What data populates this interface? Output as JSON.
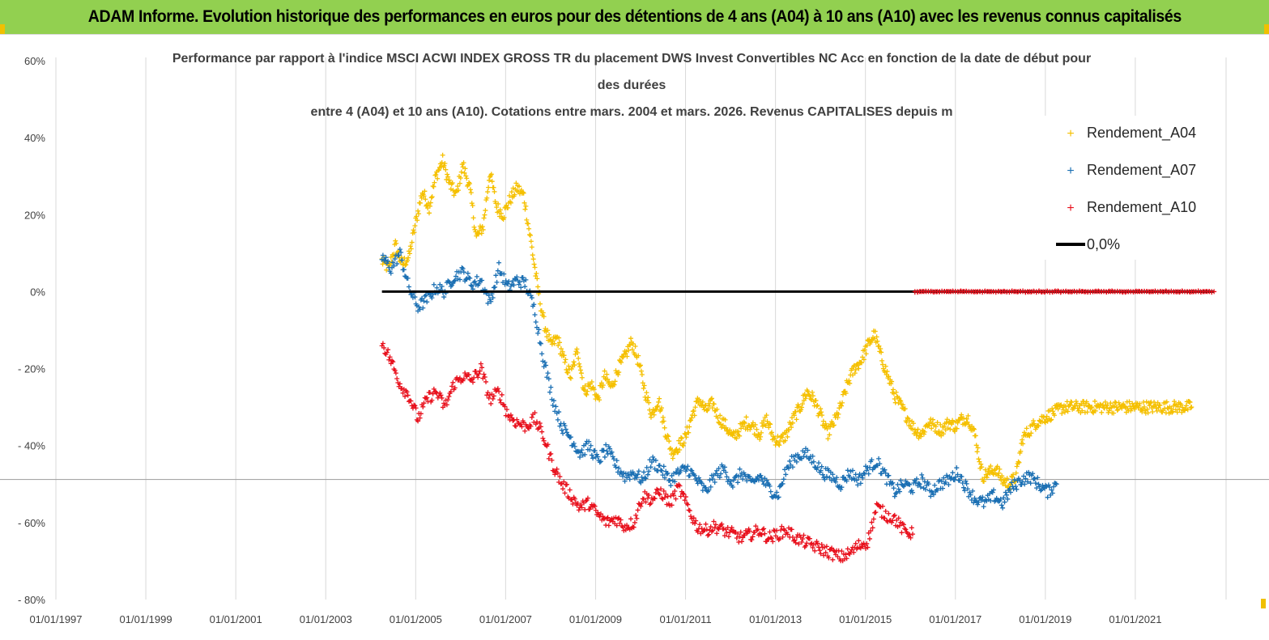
{
  "header": {
    "title": "ADAM Informe. Evolution historique des performances en euros pour des détentions de 4 ans (A04) à 10 ans (A10) avec les revenus connus capitalisés"
  },
  "colors": {
    "banner": "#92d050",
    "a04": "#f5c000",
    "a07": "#1a6fb3",
    "a10": "#e8101c",
    "zero": "#000000"
  },
  "chart_data": {
    "type": "scatter",
    "title_lines": [
      "Performance par rapport à l'indice MSCI ACWI INDEX GROSS TR  du placement DWS Invest Convertibles NC Acc en fonction de la date de début pour",
      "des durées",
      "entre 4 (A04) et 10 ans (A10). Cotations entre mars. 2004 et mars. 2026. Revenus CAPITALISES depuis m"
    ],
    "y_ticks": [
      "60%",
      "40%",
      "20%",
      "0%",
      "- 20%",
      "- 40%",
      "- 60%",
      "- 80%"
    ],
    "y_tick_values": [
      60,
      40,
      20,
      0,
      -20,
      -40,
      -60,
      -80
    ],
    "ylim": [
      -80,
      60
    ],
    "xlim": [
      1997.0,
      2023.0
    ],
    "x_ticks": [
      "01/01/1997",
      "01/01/1999",
      "01/01/2001",
      "01/01/2003",
      "01/01/2005",
      "01/01/2007",
      "01/01/2009",
      "01/01/2011",
      "01/01/2013",
      "01/01/2015",
      "01/01/2017",
      "01/01/2019",
      "01/01/2021"
    ],
    "x_tick_values": [
      1997,
      1999,
      2001,
      2003,
      2005,
      2007,
      2009,
      2011,
      2013,
      2015,
      2017,
      2019,
      2021
    ],
    "legend": {
      "position": "top-right",
      "entries": [
        "Rendement_A04",
        "Rendement_A07",
        "Rendement_A10",
        "0,0%"
      ]
    },
    "series": [
      {
        "name": "Rendement_A04",
        "x": [
          2004.25,
          2004.4,
          2004.55,
          2004.7,
          2004.85,
          2005.0,
          2005.15,
          2005.3,
          2005.45,
          2005.6,
          2005.75,
          2005.9,
          2006.05,
          2006.2,
          2006.35,
          2006.5,
          2006.65,
          2006.8,
          2006.95,
          2007.1,
          2007.25,
          2007.4,
          2007.55,
          2007.7,
          2007.85,
          2008.0,
          2008.15,
          2008.3,
          2008.45,
          2008.6,
          2008.75,
          2008.9,
          2009.05,
          2009.2,
          2009.35,
          2009.5,
          2009.65,
          2009.8,
          2009.95,
          2010.1,
          2010.25,
          2010.4,
          2010.55,
          2010.7,
          2010.85,
          2011.0,
          2011.15,
          2011.3,
          2011.45,
          2011.6,
          2011.75,
          2011.9,
          2012.05,
          2012.2,
          2012.35,
          2012.5,
          2012.65,
          2012.8,
          2012.95,
          2013.1,
          2013.25,
          2013.4,
          2013.55,
          2013.7,
          2013.85,
          2014.0,
          2014.15,
          2014.3,
          2014.45,
          2014.6,
          2014.75,
          2014.9,
          2015.05,
          2015.2,
          2015.35,
          2015.5,
          2015.65,
          2015.8,
          2015.95,
          2016.1,
          2016.25,
          2016.4,
          2016.55,
          2016.7,
          2016.85,
          2017.0,
          2017.15,
          2017.3,
          2017.45,
          2017.6,
          2017.75,
          2017.9,
          2018.05,
          2018.2,
          2018.35,
          2018.5,
          2018.65,
          2018.8,
          2018.95,
          2019.1,
          2019.25,
          2019.4,
          2019.55,
          2019.7,
          2019.85,
          2020.0,
          2020.15,
          2020.3,
          2020.45,
          2020.6,
          2020.75,
          2020.9,
          2021.05,
          2021.2,
          2021.35,
          2021.5,
          2021.65,
          2021.8,
          2021.95,
          2022.1,
          2022.25
        ],
        "y": [
          8,
          6,
          12,
          7,
          9,
          18,
          26,
          22,
          30,
          34,
          28,
          25,
          33,
          27,
          14,
          17,
          31,
          22,
          20,
          24,
          27,
          25,
          14,
          2,
          -8,
          -14,
          -12,
          -18,
          -22,
          -15,
          -26,
          -24,
          -28,
          -22,
          -25,
          -20,
          -17,
          -13,
          -18,
          -26,
          -32,
          -28,
          -36,
          -42,
          -40,
          -38,
          -32,
          -28,
          -31,
          -29,
          -33,
          -35,
          -38,
          -36,
          -34,
          -35,
          -37,
          -33,
          -38,
          -39,
          -37,
          -33,
          -30,
          -26,
          -28,
          -32,
          -37,
          -34,
          -30,
          -24,
          -20,
          -18,
          -14,
          -11,
          -17,
          -22,
          -27,
          -30,
          -33,
          -36,
          -37,
          -34,
          -35,
          -36,
          -34,
          -35,
          -33,
          -33,
          -38,
          -48,
          -47,
          -46,
          -49,
          -50,
          -48,
          -38,
          -36,
          -34,
          -33,
          -32,
          -31,
          -30,
          -30,
          -30,
          -30,
          -30,
          -30,
          -30,
          -30,
          -30,
          -30,
          -30,
          -30,
          -30,
          -30,
          -30,
          -30,
          -30,
          -30,
          -30,
          -30
        ]
      },
      {
        "name": "Rendement_A07",
        "x": [
          2004.25,
          2004.45,
          2004.65,
          2004.85,
          2005.05,
          2005.25,
          2005.45,
          2005.65,
          2005.85,
          2006.05,
          2006.25,
          2006.45,
          2006.65,
          2006.85,
          2007.05,
          2007.25,
          2007.45,
          2007.65,
          2007.85,
          2008.05,
          2008.25,
          2008.45,
          2008.65,
          2008.85,
          2009.05,
          2009.25,
          2009.45,
          2009.65,
          2009.85,
          2010.05,
          2010.25,
          2010.45,
          2010.65,
          2010.85,
          2011.05,
          2011.25,
          2011.45,
          2011.65,
          2011.85,
          2012.05,
          2012.25,
          2012.45,
          2012.65,
          2012.85,
          2013.05,
          2013.25,
          2013.45,
          2013.65,
          2013.85,
          2014.05,
          2014.25,
          2014.45,
          2014.65,
          2014.85,
          2015.05,
          2015.25,
          2015.45,
          2015.65,
          2015.85,
          2016.05,
          2016.25,
          2016.45,
          2016.65,
          2016.85,
          2017.05,
          2017.25,
          2017.45,
          2017.65,
          2017.85,
          2018.05,
          2018.25,
          2018.45,
          2018.65,
          2018.85,
          2019.05,
          2019.25
        ],
        "y": [
          9,
          6,
          10,
          1,
          -4,
          -2,
          1,
          0,
          4,
          5,
          2,
          3,
          -3,
          6,
          1,
          3,
          2,
          -5,
          -18,
          -28,
          -35,
          -38,
          -42,
          -40,
          -44,
          -41,
          -45,
          -48,
          -47,
          -49,
          -44,
          -46,
          -49,
          -47,
          -46,
          -49,
          -52,
          -48,
          -46,
          -50,
          -47,
          -50,
          -48,
          -51,
          -53,
          -46,
          -43,
          -42,
          -44,
          -47,
          -48,
          -50,
          -47,
          -49,
          -46,
          -44,
          -48,
          -52,
          -50,
          -51,
          -49,
          -52,
          -50,
          -49,
          -47,
          -51,
          -54,
          -55,
          -53,
          -55,
          -51,
          -49,
          -48,
          -50,
          -52,
          -50
        ]
      },
      {
        "name": "Rendement_A10",
        "x": [
          2004.25,
          2004.45,
          2004.65,
          2004.85,
          2005.05,
          2005.25,
          2005.45,
          2005.65,
          2005.85,
          2006.05,
          2006.25,
          2006.45,
          2006.65,
          2006.85,
          2007.05,
          2007.25,
          2007.45,
          2007.65,
          2007.85,
          2008.05,
          2008.25,
          2008.45,
          2008.65,
          2008.85,
          2009.05,
          2009.25,
          2009.45,
          2009.65,
          2009.85,
          2010.05,
          2010.25,
          2010.45,
          2010.65,
          2010.85,
          2011.05,
          2011.25,
          2011.45,
          2011.65,
          2011.85,
          2012.05,
          2012.25,
          2012.45,
          2012.65,
          2012.85,
          2013.05,
          2013.25,
          2013.45,
          2013.65,
          2013.85,
          2014.05,
          2014.25,
          2014.45,
          2014.65,
          2014.85,
          2015.05,
          2015.25,
          2015.45,
          2015.65,
          2015.85,
          2016.05
        ],
        "y": [
          -13,
          -18,
          -24,
          -27,
          -33,
          -28,
          -26,
          -30,
          -24,
          -22,
          -23,
          -20,
          -28,
          -26,
          -32,
          -34,
          -35,
          -33,
          -38,
          -45,
          -50,
          -53,
          -56,
          -55,
          -58,
          -60,
          -59,
          -61,
          -60,
          -53,
          -54,
          -52,
          -55,
          -51,
          -56,
          -61,
          -62,
          -61,
          -62,
          -63,
          -64,
          -63,
          -62,
          -64,
          -63,
          -62,
          -64,
          -65,
          -66,
          -67,
          -68,
          -69,
          -68,
          -66,
          -65,
          -56,
          -58,
          -59,
          -62,
          -63
        ]
      },
      {
        "name": "0,0%",
        "x": [
          2004.25,
          2022.75
        ],
        "y": [
          0,
          0
        ]
      }
    ],
    "a10_zero_band_x": [
      2016.1,
      2022.75
    ]
  }
}
